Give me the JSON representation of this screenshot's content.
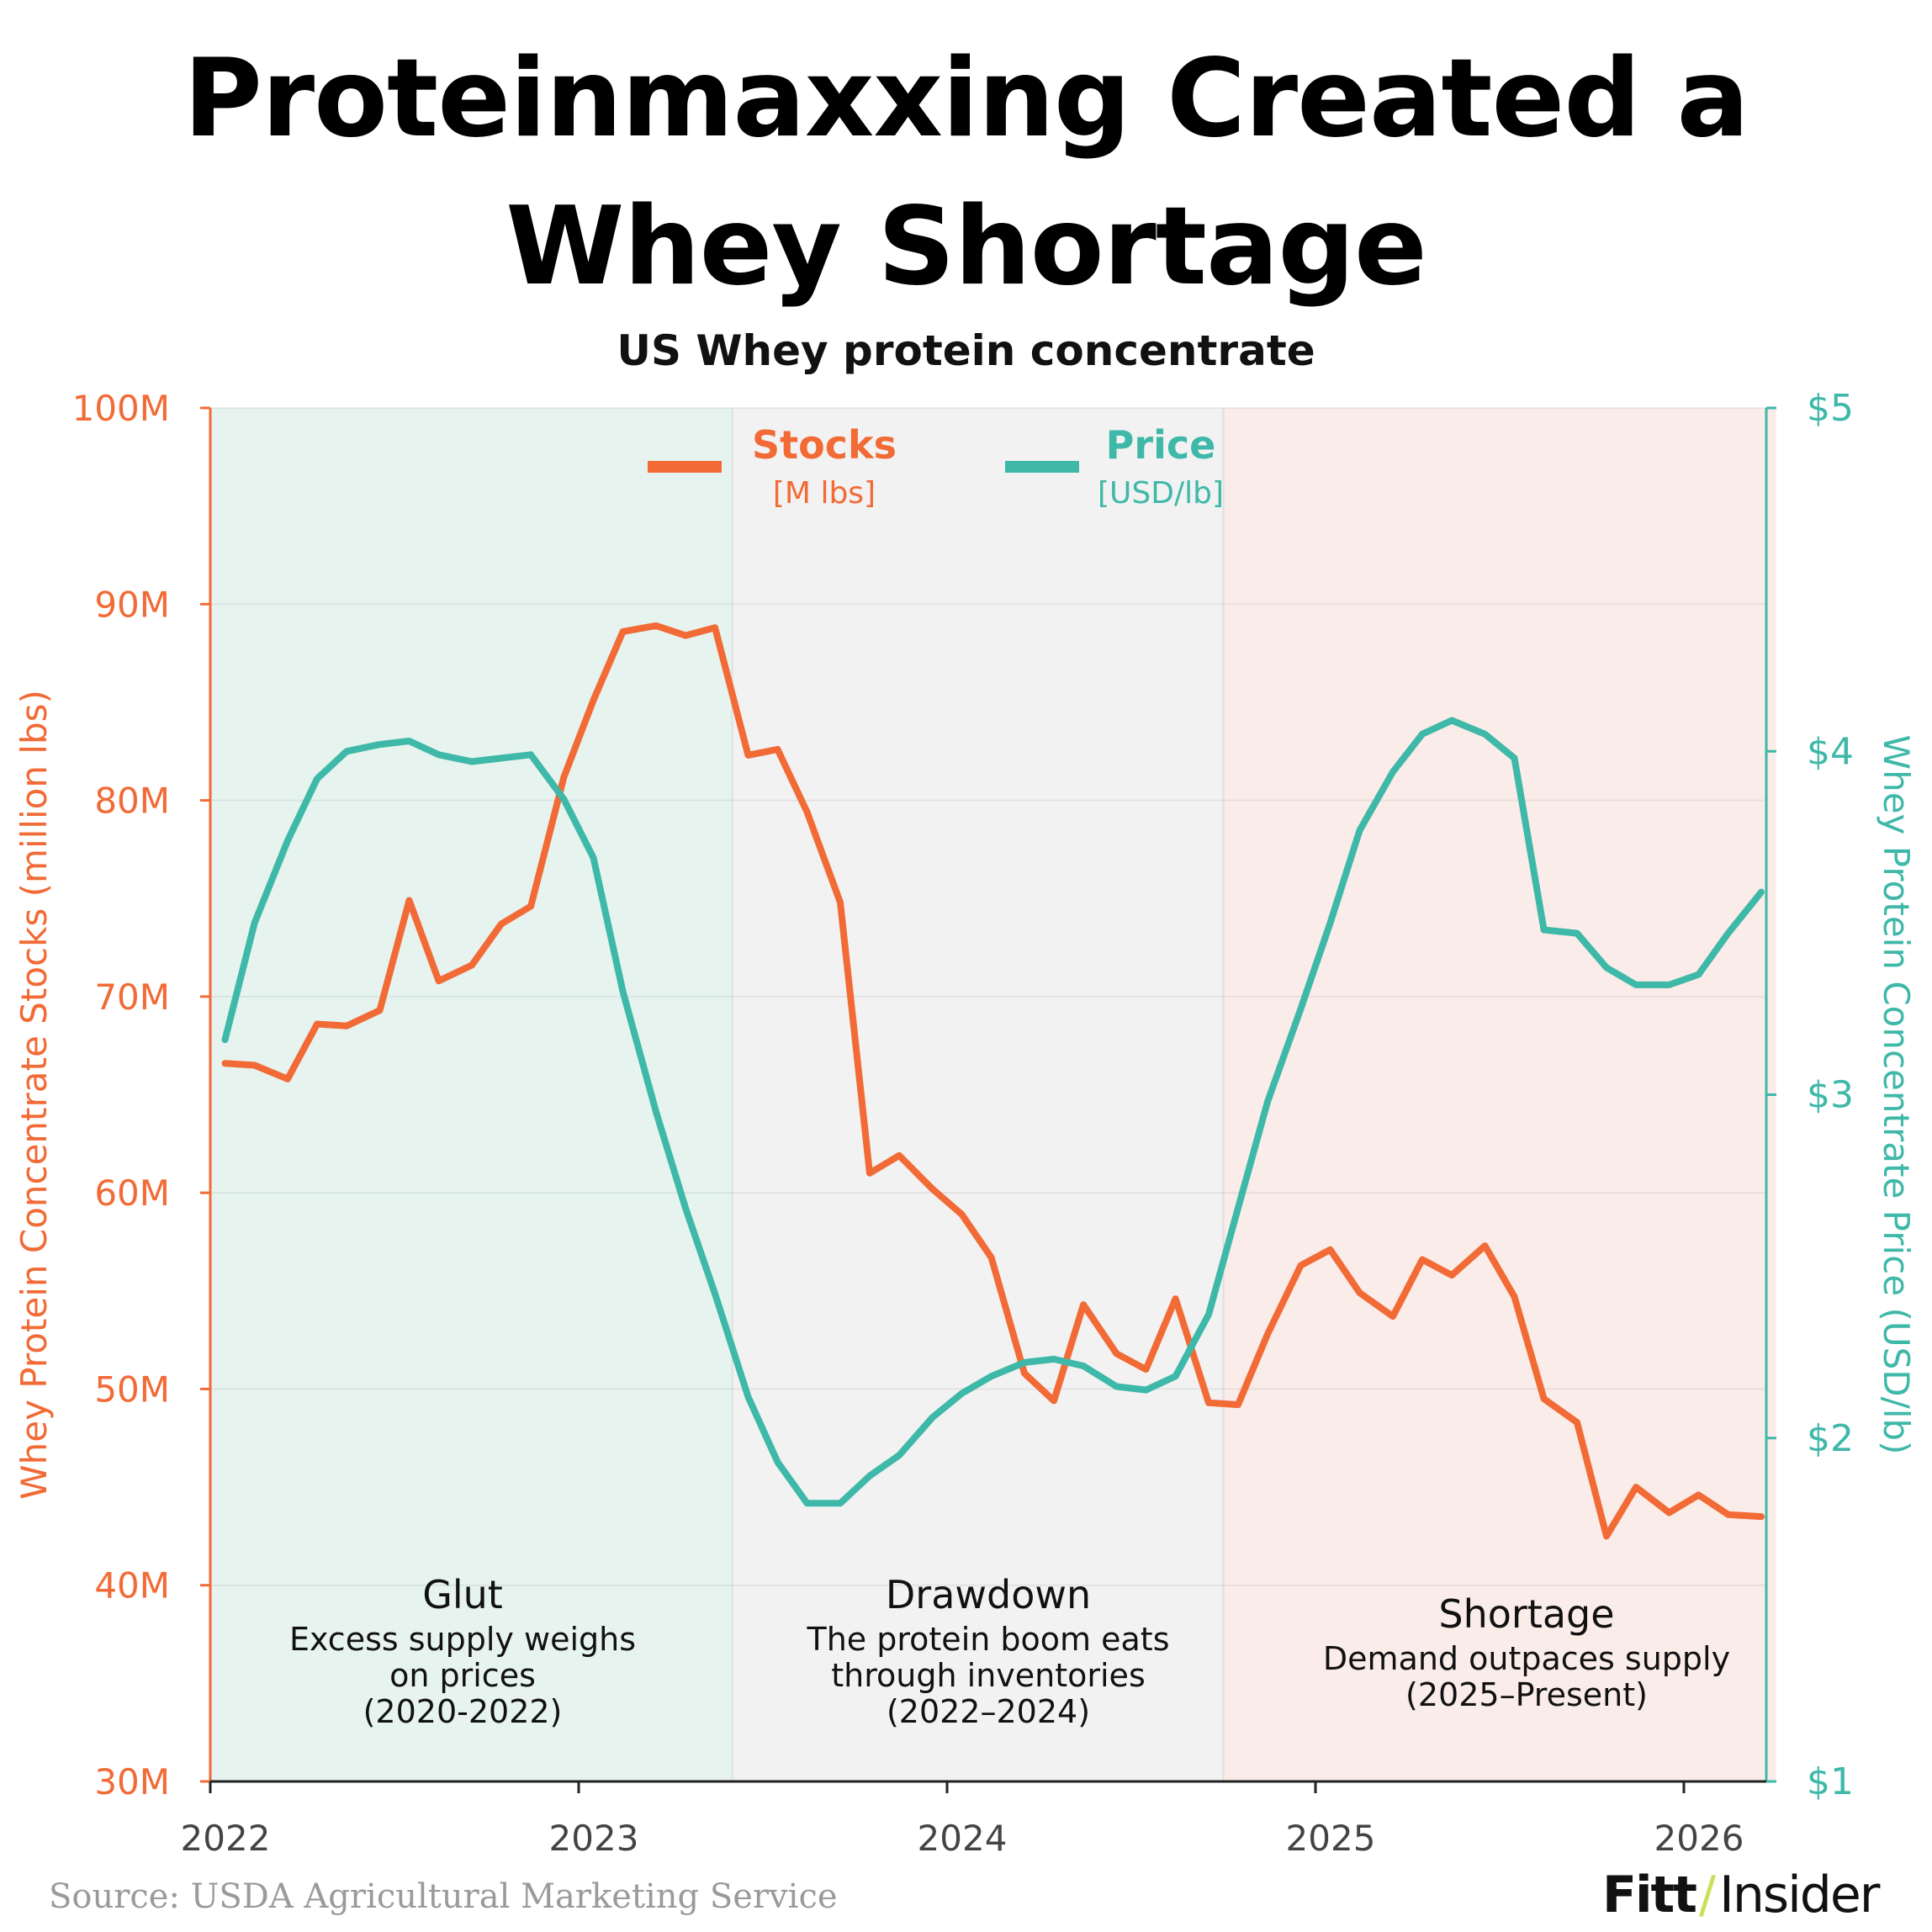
{
  "title_line1": "Proteinmaxxing Created a",
  "title_line2": "Whey Shortage",
  "subtitle": "US Whey protein concentrate",
  "source": "Source: USDA Agricultural Marketing Service",
  "logo": {
    "brand": "Fitt",
    "slash": "/",
    "name": "Insider"
  },
  "colors": {
    "stocks": "#f26a35",
    "price": "#3eb8a8",
    "glut_bg": "#e6f3ef",
    "drawdown_bg": "#f2f2f2",
    "shortage_bg": "#faece8",
    "axis_text": "#444444"
  },
  "chart_data": {
    "type": "line",
    "x_ticks": [
      "2022",
      "2023",
      "2024",
      "2025",
      "2026"
    ],
    "left_axis": {
      "label": "Whey Protein Concentrate Stocks (million lbs)",
      "ticks": [
        "30M",
        "40M",
        "50M",
        "60M",
        "70M",
        "80M",
        "90M",
        "100M"
      ],
      "ylim": [
        30,
        100
      ]
    },
    "right_axis": {
      "label": "Whey Protein Concentrate Price (USD/lb)",
      "ticks": [
        "$1",
        "$2",
        "$3",
        "$4",
        "$5"
      ],
      "ylim": [
        1,
        5
      ]
    },
    "legend": [
      {
        "name": "Stocks",
        "unit": "[M lbs]"
      },
      {
        "name": "Price",
        "unit": "[USD/lb]"
      }
    ],
    "grid": true,
    "regions": [
      {
        "name": "Glut",
        "desc1": "Excess supply weighs",
        "desc2": "on prices",
        "desc3": "(2020-2022)",
        "start": 2022.0,
        "end": 2023.417
      },
      {
        "name": "Drawdown",
        "desc1": "The protein boom eats",
        "desc2": "through inventories",
        "desc3": "(2022–2024)",
        "start": 2023.417,
        "end": 2024.75
      },
      {
        "name": "Shortage",
        "desc1": "Demand outpaces supply",
        "desc2": "(2025–Present)",
        "desc3": "",
        "start": 2024.75,
        "end": 2026.25
      }
    ],
    "series": [
      {
        "name": "Stocks",
        "axis": "left",
        "x": [
          2022.04,
          2022.12,
          2022.21,
          2022.29,
          2022.37,
          2022.46,
          2022.54,
          2022.62,
          2022.71,
          2022.79,
          2022.87,
          2022.96,
          2023.04,
          2023.12,
          2023.21,
          2023.29,
          2023.37,
          2023.46,
          2023.54,
          2023.62,
          2023.71,
          2023.79,
          2023.87,
          2023.96,
          2024.04,
          2024.12,
          2024.21,
          2024.29,
          2024.37,
          2024.46,
          2024.54,
          2024.62,
          2024.71,
          2024.79,
          2024.87,
          2024.96,
          2025.04,
          2025.12,
          2025.21,
          2025.29,
          2025.37,
          2025.46,
          2025.54,
          2025.62,
          2025.71,
          2025.79,
          2025.87,
          2025.96,
          2026.04,
          2026.12,
          2026.21
        ],
        "values": [
          66.6,
          66.5,
          65.8,
          68.6,
          68.5,
          69.3,
          74.9,
          70.8,
          71.6,
          73.7,
          74.6,
          81.2,
          85.1,
          88.6,
          88.9,
          88.4,
          88.8,
          82.3,
          82.6,
          79.4,
          74.8,
          61.0,
          61.9,
          60.2,
          58.9,
          56.7,
          50.8,
          49.4,
          54.3,
          51.8,
          51.0,
          54.6,
          49.3,
          49.2,
          52.8,
          56.3,
          57.1,
          54.9,
          53.7,
          56.6,
          55.8,
          57.3,
          54.7,
          49.5,
          48.3,
          42.5,
          45.0,
          43.7,
          44.6,
          43.6,
          43.5
        ]
      },
      {
        "name": "Price",
        "axis": "right",
        "x": [
          2022.04,
          2022.12,
          2022.21,
          2022.29,
          2022.37,
          2022.46,
          2022.54,
          2022.62,
          2022.71,
          2022.79,
          2022.87,
          2022.96,
          2023.04,
          2023.12,
          2023.21,
          2023.29,
          2023.37,
          2023.46,
          2023.54,
          2023.62,
          2023.71,
          2023.79,
          2023.87,
          2023.96,
          2024.04,
          2024.12,
          2024.21,
          2024.29,
          2024.37,
          2024.46,
          2024.54,
          2024.62,
          2024.71,
          2024.79,
          2024.87,
          2024.96,
          2025.04,
          2025.12,
          2025.21,
          2025.29,
          2025.37,
          2025.46,
          2025.54,
          2025.62,
          2025.71,
          2025.79,
          2025.87,
          2025.96,
          2026.04,
          2026.12,
          2026.21
        ],
        "values": [
          3.16,
          3.5,
          3.74,
          3.92,
          4.0,
          4.02,
          4.03,
          3.99,
          3.97,
          3.98,
          3.99,
          3.86,
          3.69,
          3.3,
          2.95,
          2.67,
          2.42,
          2.12,
          1.93,
          1.81,
          1.81,
          1.89,
          1.95,
          2.06,
          2.13,
          2.18,
          2.22,
          2.23,
          2.21,
          2.15,
          2.14,
          2.18,
          2.36,
          2.67,
          2.98,
          3.25,
          3.5,
          3.77,
          3.94,
          4.05,
          4.09,
          4.05,
          3.98,
          3.48,
          3.47,
          3.37,
          3.32,
          3.32,
          3.35,
          3.47,
          3.59
        ]
      }
    ]
  }
}
